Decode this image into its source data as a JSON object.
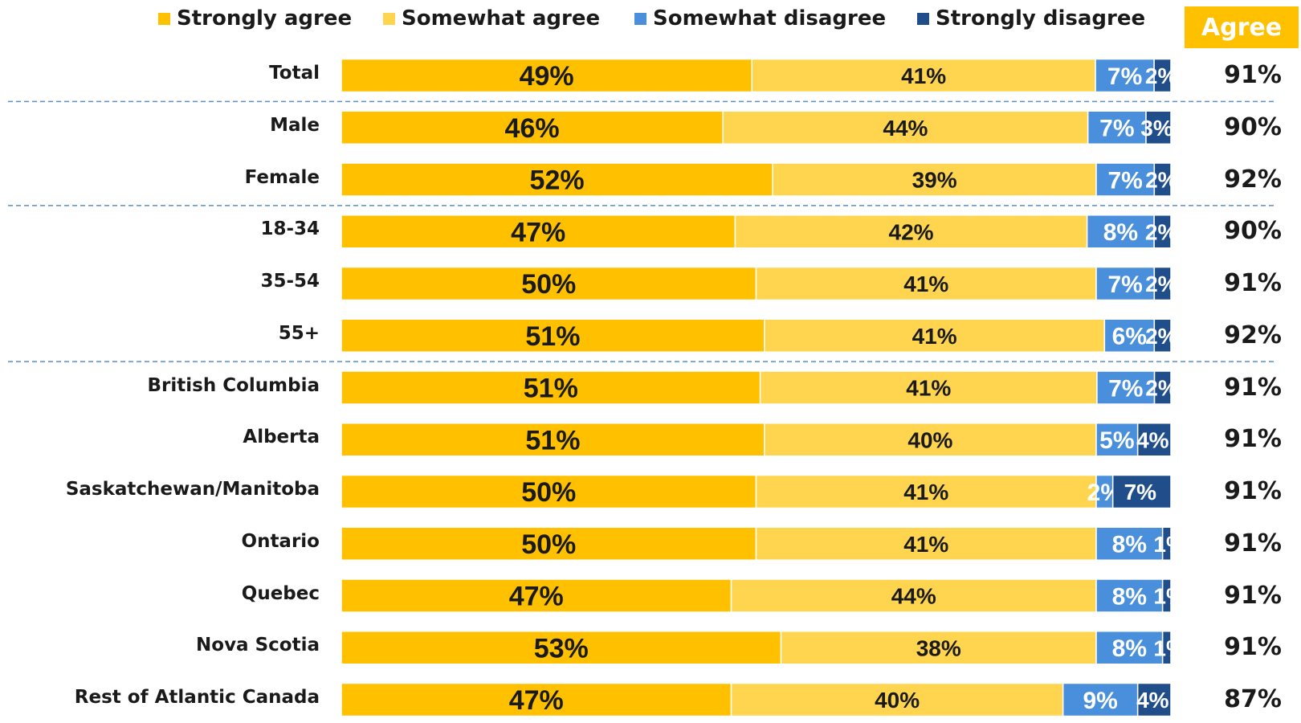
{
  "colors": {
    "strongly_agree": "#FFC000",
    "somewhat_agree": "#FFD54F",
    "somewhat_disagree": "#4A8FDB",
    "strongly_disagree": "#1F4E8A",
    "agree_header_bg": "#FFC000",
    "divider": "#5B8FC9"
  },
  "agree_header": "Agree",
  "chart_data": {
    "type": "bar",
    "orientation": "horizontal",
    "stacked": true,
    "legend_position": "top",
    "grid": false,
    "categories": [
      "Total",
      "Male",
      "Female",
      "18-34",
      "35-54",
      "55+",
      "British Columbia",
      "Alberta",
      "Saskatchewan/Manitoba",
      "Ontario",
      "Quebec",
      "Nova Scotia",
      "Rest of Atlantic Canada"
    ],
    "series": [
      {
        "name": "Strongly agree",
        "values": [
          49,
          46,
          52,
          47,
          50,
          51,
          51,
          51,
          50,
          50,
          47,
          53,
          47
        ],
        "labels": [
          "49%",
          "46%",
          "52%",
          "47%",
          "50%",
          "51%",
          "51%",
          "51%",
          "50%",
          "50%",
          "47%",
          "53%",
          "47%"
        ]
      },
      {
        "name": "Somewhat agree",
        "values": [
          41,
          44,
          39,
          42,
          41,
          41,
          41,
          40,
          41,
          41,
          44,
          38,
          40
        ],
        "labels": [
          "41%",
          "44%",
          "39%",
          "42%",
          "41%",
          "41%",
          "41%",
          "40%",
          "41%",
          "41%",
          "44%",
          "38%",
          "40%"
        ]
      },
      {
        "name": "Somewhat disagree",
        "values": [
          7,
          7,
          7,
          8,
          7,
          6,
          7,
          5,
          2,
          8,
          8,
          8,
          9
        ],
        "labels": [
          "7%",
          "7%",
          "7%",
          "8%",
          "7%",
          "6%",
          "7%",
          "5%",
          "2%",
          "8%",
          "8%",
          "8%",
          "9%"
        ]
      },
      {
        "name": "Strongly disagree",
        "values": [
          2,
          3,
          2,
          2,
          2,
          2,
          2,
          4,
          7,
          1,
          1,
          1,
          4
        ],
        "labels": [
          "2%",
          "3%",
          "2%",
          "2%",
          "2%",
          "2%",
          "2%",
          "4%",
          "7%",
          "1%",
          "1%",
          "1%",
          "4%"
        ]
      }
    ],
    "agree_totals": [
      "91%",
      "90%",
      "92%",
      "90%",
      "91%",
      "92%",
      "91%",
      "91%",
      "91%",
      "91%",
      "91%",
      "91%",
      "87%"
    ],
    "group_dividers_after": [
      "Total",
      "Female",
      "55+"
    ]
  }
}
